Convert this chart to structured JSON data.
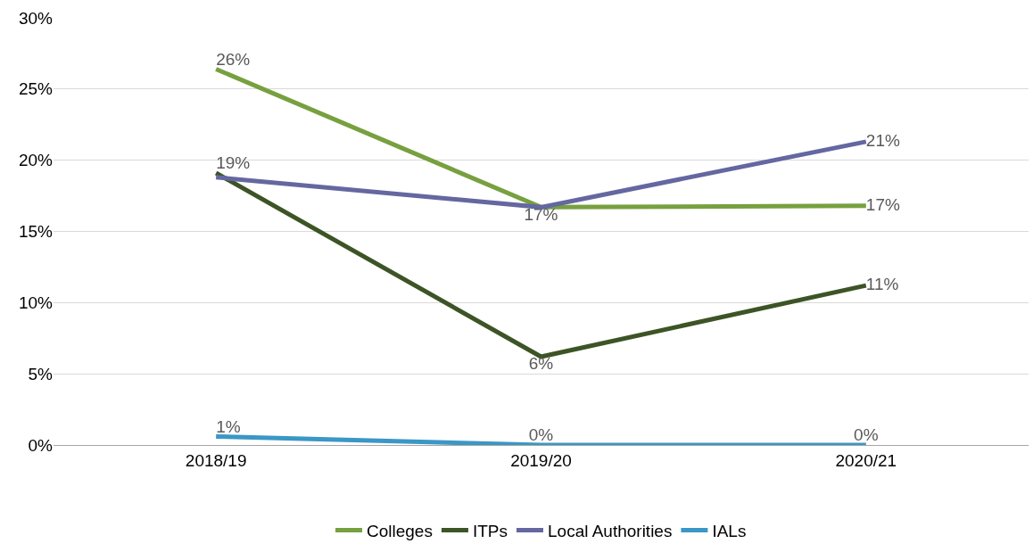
{
  "chart_data": {
    "type": "line",
    "categories": [
      "2018/19",
      "2019/20",
      "2020/21"
    ],
    "series": [
      {
        "name": "Colleges",
        "color": "#77a03f",
        "values": [
          26.4,
          16.7,
          16.8
        ],
        "value_labels": [
          "26%",
          "17%",
          "17%"
        ]
      },
      {
        "name": "ITPs",
        "color": "#3d5426",
        "values": [
          19.1,
          6.2,
          11.2
        ],
        "value_labels": [
          "19%",
          "6%",
          "11%"
        ]
      },
      {
        "name": "Local Authorities",
        "color": "#6467a0",
        "values": [
          18.8,
          16.7,
          21.3
        ],
        "value_labels": [
          null,
          null,
          "21%"
        ]
      },
      {
        "name": "IALs",
        "color": "#3a97c6",
        "values": [
          0.6,
          0.0,
          0.0
        ],
        "value_labels": [
          "1%",
          "0%",
          "0%"
        ]
      }
    ],
    "ylim": [
      0,
      30
    ],
    "yticks": [
      {
        "value": 0,
        "label": "0%"
      },
      {
        "value": 5,
        "label": "5%"
      },
      {
        "value": 10,
        "label": "10%"
      },
      {
        "value": 15,
        "label": "15%"
      },
      {
        "value": 20,
        "label": "20%"
      },
      {
        "value": 25,
        "label": "25%"
      },
      {
        "value": 30,
        "label": "30%"
      }
    ],
    "grid": "y",
    "legend": "bottom",
    "marker": "none",
    "line_style": "solid"
  }
}
